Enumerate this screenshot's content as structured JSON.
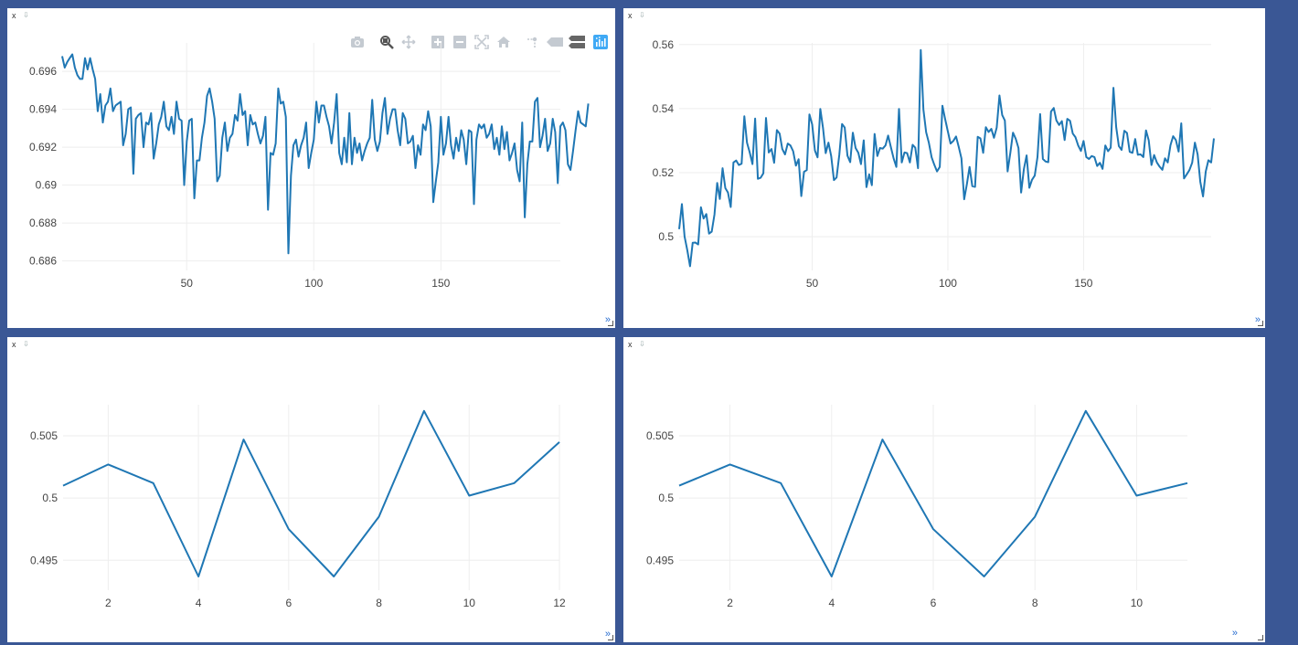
{
  "colors": {
    "background": "#3a5795",
    "panel": "#ffffff",
    "trace": "#1f77b4",
    "grid": "#eeeeee",
    "modebar_logo": "#3fa9f5"
  },
  "panel_controls": {
    "close": "x",
    "pin": "⇩",
    "more": "»"
  },
  "modebar": {
    "icons": [
      "camera-icon",
      "zoom-icon",
      "pan-icon",
      "zoom-in-icon",
      "zoom-out-icon",
      "autoscale-icon",
      "reset-axes-icon",
      "spike-lines-icon",
      "hover-closest-icon",
      "hover-compare-icon",
      "plotly-logo-icon"
    ]
  },
  "chart_data": [
    {
      "type": "line",
      "xlim": [
        1,
        197
      ],
      "ylim": [
        0.6855,
        0.6975
      ],
      "xticks": [
        50,
        100,
        150
      ],
      "xtick_labels": [
        "50",
        "100",
        "150"
      ],
      "yticks": [
        0.686,
        0.688,
        0.69,
        0.692,
        0.694,
        0.696
      ],
      "ytick_labels": [
        "0.686",
        "0.688",
        "0.69",
        "0.692",
        "0.694",
        "0.696"
      ],
      "grid": true,
      "series": [
        {
          "values": [
            0.6968,
            0.6962,
            0.6965,
            0.6967,
            0.6969,
            0.6962,
            0.6958,
            0.6956,
            0.6956,
            0.6967,
            0.6961,
            0.6967,
            0.6961,
            0.6956,
            0.6939,
            0.6948,
            0.6933,
            0.6942,
            0.6944,
            0.6951,
            0.6939,
            0.6942,
            0.6943,
            0.6944,
            0.6921,
            0.6927,
            0.694,
            0.6941,
            0.6906,
            0.6935,
            0.6937,
            0.6938,
            0.692,
            0.6933,
            0.6932,
            0.6938,
            0.6914,
            0.6922,
            0.6932,
            0.6936,
            0.6944,
            0.6931,
            0.6929,
            0.6936,
            0.6927,
            0.6944,
            0.6935,
            0.6934,
            0.69,
            0.6923,
            0.6934,
            0.6935,
            0.6893,
            0.6913,
            0.6913,
            0.6925,
            0.6933,
            0.6947,
            0.6951,
            0.6944,
            0.6935,
            0.6902,
            0.6905,
            0.6925,
            0.6933,
            0.6918,
            0.6925,
            0.6927,
            0.6937,
            0.6934,
            0.6948,
            0.6937,
            0.6939,
            0.6921,
            0.6937,
            0.6932,
            0.6933,
            0.6927,
            0.6922,
            0.6926,
            0.6936,
            0.6887,
            0.6917,
            0.6916,
            0.6922,
            0.6951,
            0.6943,
            0.6944,
            0.6936,
            0.6864,
            0.6905,
            0.6921,
            0.6924,
            0.6915,
            0.6921,
            0.6925,
            0.6933,
            0.6909,
            0.6917,
            0.6924,
            0.6944,
            0.6933,
            0.6942,
            0.6942,
            0.6936,
            0.6931,
            0.6922,
            0.6933,
            0.6948,
            0.6917,
            0.6911,
            0.6925,
            0.6912,
            0.6938,
            0.6911,
            0.6925,
            0.6917,
            0.6922,
            0.6913,
            0.6918,
            0.6922,
            0.6925,
            0.6945,
            0.6924,
            0.6918,
            0.6923,
            0.6938,
            0.6946,
            0.6927,
            0.6935,
            0.694,
            0.694,
            0.6929,
            0.6921,
            0.6938,
            0.6935,
            0.6922,
            0.6923,
            0.6926,
            0.6909,
            0.6921,
            0.6916,
            0.6932,
            0.6929,
            0.6939,
            0.6931,
            0.6891,
            0.6902,
            0.6912,
            0.6936,
            0.6916,
            0.6922,
            0.6936,
            0.6921,
            0.6914,
            0.6925,
            0.6918,
            0.6929,
            0.6924,
            0.6911,
            0.6929,
            0.6928,
            0.689,
            0.6924,
            0.6932,
            0.693,
            0.6932,
            0.6925,
            0.6927,
            0.6932,
            0.6919,
            0.6925,
            0.6916,
            0.6931,
            0.6919,
            0.6928,
            0.6913,
            0.6917,
            0.6922,
            0.6908,
            0.6902,
            0.6933,
            0.6883,
            0.6911,
            0.6923,
            0.6923,
            0.6944,
            0.6946,
            0.692,
            0.6926,
            0.6935,
            0.6918,
            0.6922,
            0.6935,
            0.6928,
            0.6901,
            0.6931,
            0.6933,
            0.6929,
            0.6911,
            0.6908,
            0.6918,
            0.6929,
            0.6939,
            0.6933,
            0.6932,
            0.6931,
            0.6943
          ]
        }
      ]
    },
    {
      "type": "line",
      "xlim": [
        1,
        197
      ],
      "ylim": [
        0.4895,
        0.5605
      ],
      "xticks": [
        50,
        100,
        150
      ],
      "xtick_labels": [
        "50",
        "100",
        "150"
      ],
      "yticks": [
        0.5,
        0.52,
        0.54,
        0.56
      ],
      "ytick_labels": [
        "0.5",
        "0.52",
        "0.54",
        "0.56"
      ],
      "grid": true,
      "series": [
        {
          "values": [
            0.5024,
            0.5102,
            0.5001,
            0.4958,
            0.4908,
            0.4981,
            0.4982,
            0.4976,
            0.5092,
            0.5057,
            0.5071,
            0.501,
            0.5016,
            0.5069,
            0.5168,
            0.5118,
            0.5214,
            0.5152,
            0.5138,
            0.5093,
            0.5232,
            0.5238,
            0.5224,
            0.5228,
            0.5376,
            0.5294,
            0.5263,
            0.5227,
            0.5369,
            0.5181,
            0.5184,
            0.5198,
            0.5371,
            0.5263,
            0.5274,
            0.5231,
            0.5333,
            0.5322,
            0.5274,
            0.5257,
            0.5291,
            0.5285,
            0.5267,
            0.5222,
            0.5242,
            0.5127,
            0.5203,
            0.5208,
            0.5382,
            0.5351,
            0.5269,
            0.5248,
            0.5399,
            0.5339,
            0.5261,
            0.5294,
            0.5252,
            0.5177,
            0.5185,
            0.5256,
            0.5352,
            0.5341,
            0.5253,
            0.5233,
            0.5325,
            0.5277,
            0.5262,
            0.5227,
            0.5301,
            0.5155,
            0.5195,
            0.5161,
            0.5321,
            0.5252,
            0.5277,
            0.5275,
            0.5285,
            0.5316,
            0.528,
            0.5245,
            0.5218,
            0.5399,
            0.5232,
            0.5263,
            0.5261,
            0.5232,
            0.5287,
            0.5278,
            0.5214,
            0.5583,
            0.5397,
            0.5326,
            0.5293,
            0.5248,
            0.5225,
            0.5204,
            0.5218,
            0.5409,
            0.5367,
            0.5328,
            0.5291,
            0.5299,
            0.5313,
            0.5281,
            0.5245,
            0.5117,
            0.5165,
            0.5218,
            0.5158,
            0.5156,
            0.5312,
            0.5307,
            0.5262,
            0.5342,
            0.5327,
            0.5337,
            0.5309,
            0.5341,
            0.5441,
            0.538,
            0.5363,
            0.5204,
            0.5262,
            0.5325,
            0.5306,
            0.5277,
            0.5138,
            0.5211,
            0.5254,
            0.5153,
            0.5178,
            0.5191,
            0.5249,
            0.5383,
            0.5243,
            0.5235,
            0.5233,
            0.5391,
            0.5402,
            0.5363,
            0.5349,
            0.5361,
            0.5302,
            0.5368,
            0.5362,
            0.5322,
            0.5311,
            0.5285,
            0.5268,
            0.5299,
            0.5249,
            0.5243,
            0.5252,
            0.5249,
            0.5221,
            0.5231,
            0.5212,
            0.5285,
            0.5267,
            0.5278,
            0.5465,
            0.5342,
            0.5283,
            0.5271,
            0.5331,
            0.5324,
            0.5265,
            0.5262,
            0.5305,
            0.5256,
            0.5257,
            0.5249,
            0.5332,
            0.5301,
            0.5224,
            0.5255,
            0.5232,
            0.5219,
            0.5209,
            0.5245,
            0.5232,
            0.5286,
            0.5314,
            0.5302,
            0.5266,
            0.5354,
            0.5182,
            0.5195,
            0.5208,
            0.5231,
            0.5294,
            0.5257,
            0.5172,
            0.5126,
            0.5204,
            0.5239,
            0.5232,
            0.5307
          ]
        }
      ]
    },
    {
      "type": "line",
      "xlim": [
        1,
        12
      ],
      "ylim": [
        0.4926,
        0.5075
      ],
      "xticks": [
        2,
        4,
        6,
        8,
        10,
        12
      ],
      "xtick_labels": [
        "2",
        "4",
        "6",
        "8",
        "10",
        "12"
      ],
      "yticks": [
        0.495,
        0.5,
        0.505
      ],
      "ytick_labels": [
        "0.495",
        "0.5",
        "0.505"
      ],
      "grid": true,
      "series": [
        {
          "x": [
            1,
            2,
            3,
            4,
            5,
            6,
            7,
            8,
            9,
            10,
            11,
            12
          ],
          "values": [
            0.501,
            0.5027,
            0.5012,
            0.4937,
            0.5047,
            0.4975,
            0.4937,
            0.4985,
            0.507,
            0.5002,
            0.5012,
            0.5045
          ]
        }
      ]
    },
    {
      "type": "line",
      "xlim": [
        1,
        11
      ],
      "ylim": [
        0.4926,
        0.5075
      ],
      "xticks": [
        2,
        4,
        6,
        8,
        10
      ],
      "xtick_labels": [
        "2",
        "4",
        "6",
        "8",
        "10"
      ],
      "yticks": [
        0.495,
        0.5,
        0.505
      ],
      "ytick_labels": [
        "0.495",
        "0.5",
        "0.505"
      ],
      "grid": true,
      "series": [
        {
          "x": [
            1,
            2,
            3,
            4,
            5,
            6,
            7,
            8,
            9,
            10,
            11
          ],
          "values": [
            0.501,
            0.5027,
            0.5012,
            0.4937,
            0.5047,
            0.4975,
            0.4937,
            0.4985,
            0.507,
            0.5002,
            0.5012
          ]
        }
      ]
    }
  ]
}
